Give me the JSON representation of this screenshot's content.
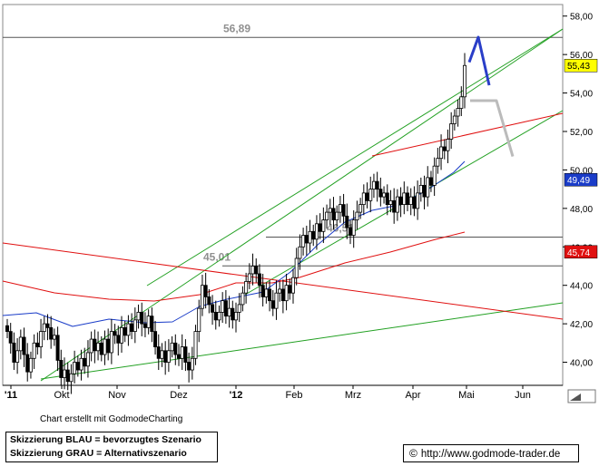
{
  "chart_data": {
    "type": "candlestick",
    "y_range": [
      38.8,
      58.6
    ],
    "y_ticks": [
      "58,00",
      "56,00",
      "54,00",
      "52,00",
      "50,00",
      "48,00",
      "46,00",
      "44,00",
      "42,00",
      "40,00"
    ],
    "x_labels": [
      "'11",
      "Okt",
      "Nov",
      "Dez",
      "'12",
      "Feb",
      "Mrz",
      "Apr",
      "Mai",
      "Jun"
    ],
    "horizontal_levels": [
      {
        "label": "56,89",
        "value": 56.89
      },
      {
        "label": "46,51",
        "value": 46.51
      },
      {
        "label": "45,01",
        "value": 45.01
      }
    ],
    "price_markers": [
      {
        "label": "55,43",
        "value": 55.43,
        "bg": "#ffff00",
        "fg": "#000000"
      },
      {
        "label": "49,49",
        "value": 49.49,
        "bg": "#1a3cc8",
        "fg": "#ffffff"
      },
      {
        "label": "45,74",
        "value": 45.74,
        "bg": "#e01010",
        "fg": "#ffffff"
      }
    ],
    "candles_close": [
      41.6,
      41.0,
      40.0,
      40.6,
      41.3,
      40.4,
      39.5,
      40.2,
      41.0,
      40.8,
      41.6,
      42.0,
      41.8,
      41.2,
      41.4,
      40.1,
      39.2,
      39.6,
      39.0,
      39.4,
      40.0,
      39.6,
      40.2,
      39.8,
      40.5,
      41.2,
      40.6,
      41.0,
      40.4,
      41.2,
      40.5,
      41.6,
      41.4,
      41.0,
      41.8,
      41.4,
      42.0,
      41.6,
      42.2,
      42.6,
      42.0,
      41.8,
      42.4,
      41.6,
      40.8,
      40.2,
      40.6,
      40.0,
      40.6,
      41.0,
      40.4,
      40.2,
      40.8,
      40.0,
      39.6,
      40.2,
      41.6,
      42.8,
      44.0,
      43.4,
      43.0,
      42.6,
      42.2,
      42.6,
      43.2,
      42.4,
      42.8,
      42.2,
      42.6,
      43.0,
      43.6,
      44.2,
      44.6,
      45.0,
      44.6,
      44.0,
      43.4,
      43.8,
      43.2,
      42.8,
      43.6,
      43.8,
      43.2,
      44.0,
      43.6,
      44.4,
      45.4,
      46.0,
      46.6,
      46.2,
      46.8,
      46.4,
      47.2,
      46.8,
      47.4,
      47.8,
      48.0,
      47.4,
      47.8,
      48.2,
      47.6,
      47.0,
      46.6,
      47.4,
      47.8,
      48.2,
      48.8,
      48.4,
      49.0,
      49.4,
      49.0,
      48.6,
      48.8,
      48.2,
      48.4,
      47.8,
      48.6,
      48.2,
      48.8,
      48.2,
      48.6,
      48.0,
      48.8,
      49.2,
      48.6,
      49.6,
      49.2,
      50.2,
      50.6,
      51.2,
      51.0,
      51.6,
      52.4,
      52.8,
      53.2,
      53.8,
      55.43
    ],
    "series": [
      {
        "name": "",
        "color": "#1a3cc8"
      },
      {
        "name": "",
        "color": "#e01010"
      },
      {
        "name": "",
        "color": "#e01010"
      },
      {
        "name": "",
        "color": "#22a022"
      }
    ],
    "scenarios": [
      {
        "name": "BLAU",
        "color": "#2a3ec8",
        "path": [
          55.6,
          56.9,
          54.4
        ]
      },
      {
        "name": "GRAU",
        "color": "#bbbbbb",
        "path": [
          53.6,
          53.6,
          50.7
        ]
      }
    ]
  },
  "footer": {
    "credit": "Chart erstellt mit GodmodeCharting",
    "legend_line1": "Skizzierung BLAU = bevorzugtes Szenario",
    "legend_line2": "Skizzierung GRAU = Alternativszenario",
    "copyright_symbol": "©",
    "url": "http://www.godmode-trader.de"
  }
}
